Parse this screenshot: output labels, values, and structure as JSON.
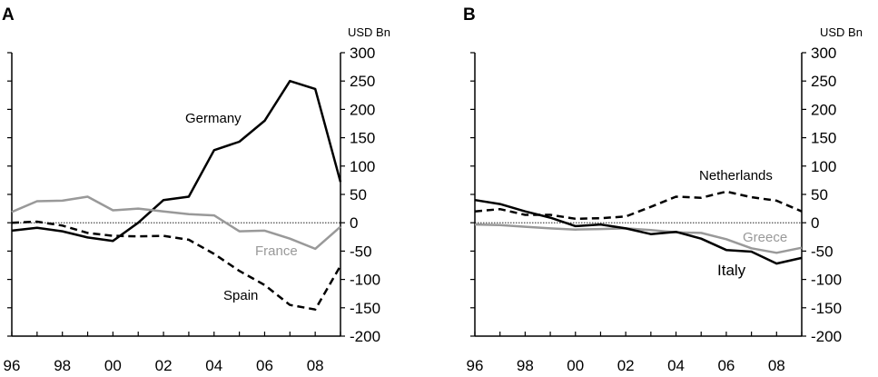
{
  "chart_data": [
    {
      "type": "line",
      "panel": "A",
      "unit": "USD Bn",
      "xlabel": "",
      "ylabel": "",
      "x": [
        1996,
        1997,
        1998,
        1999,
        2000,
        2001,
        2002,
        2003,
        2004,
        2005,
        2006,
        2007,
        2008,
        2009
      ],
      "x_ticks": [
        "96",
        "98",
        "00",
        "02",
        "04",
        "06",
        "08"
      ],
      "x_tick_values": [
        1996,
        1998,
        2000,
        2002,
        2004,
        2006,
        2008
      ],
      "xlim": [
        1996,
        2009
      ],
      "y_ticks": [
        "300",
        "250",
        "200",
        "150",
        "100",
        "50",
        "0",
        "-50",
        "-100",
        "-150",
        "-200"
      ],
      "y_tick_values": [
        300,
        250,
        200,
        150,
        100,
        50,
        0,
        -50,
        -100,
        -150,
        -200
      ],
      "ylim": [
        -200,
        300
      ],
      "zero_line": true,
      "grid": false,
      "series": [
        {
          "name": "Germany",
          "color": "#000000",
          "dash": "solid",
          "values": [
            -14,
            -9,
            -15,
            -26,
            -32,
            0,
            40,
            46,
            128,
            143,
            180,
            250,
            236,
            72
          ]
        },
        {
          "name": "France",
          "color": "#999999",
          "dash": "solid",
          "values": [
            19,
            38,
            39,
            46,
            22,
            25,
            20,
            15,
            13,
            -15,
            -14,
            -28,
            -46,
            -7
          ]
        },
        {
          "name": "Spain",
          "color": "#000000",
          "dash": "dashed",
          "values": [
            0,
            2,
            -5,
            -18,
            -23,
            -24,
            -23,
            -30,
            -55,
            -85,
            -110,
            -145,
            -153,
            -76
          ]
        }
      ]
    },
    {
      "type": "line",
      "panel": "B",
      "unit": "USD Bn",
      "xlabel": "",
      "ylabel": "",
      "x": [
        1996,
        1997,
        1998,
        1999,
        2000,
        2001,
        2002,
        2003,
        2004,
        2005,
        2006,
        2007,
        2008,
        2009
      ],
      "x_ticks": [
        "96",
        "98",
        "00",
        "02",
        "04",
        "06",
        "08"
      ],
      "x_tick_values": [
        1996,
        1998,
        2000,
        2002,
        2004,
        2006,
        2008
      ],
      "xlim": [
        1996,
        2009
      ],
      "y_ticks": [
        "300",
        "250",
        "200",
        "150",
        "100",
        "50",
        "0",
        "-50",
        "-100",
        "-150",
        "-200"
      ],
      "y_tick_values": [
        300,
        250,
        200,
        150,
        100,
        50,
        0,
        -50,
        -100,
        -150,
        -200
      ],
      "ylim": [
        -200,
        300
      ],
      "zero_line": true,
      "grid": false,
      "series": [
        {
          "name": "Netherlands",
          "color": "#000000",
          "dash": "dashed",
          "values": [
            20,
            24,
            14,
            14,
            7,
            8,
            11,
            28,
            46,
            44,
            55,
            45,
            39,
            20
          ]
        },
        {
          "name": "Greece",
          "color": "#999999",
          "dash": "solid",
          "values": [
            -3,
            -4,
            -7,
            -10,
            -12,
            -11,
            -10,
            -13,
            -17,
            -18,
            -29,
            -45,
            -53,
            -44
          ]
        },
        {
          "name": "Italy",
          "color": "#000000",
          "dash": "solid",
          "values": [
            40,
            33,
            20,
            9,
            -6,
            -3,
            -10,
            -20,
            -16,
            -28,
            -48,
            -51,
            -72,
            -62
          ]
        }
      ]
    }
  ]
}
